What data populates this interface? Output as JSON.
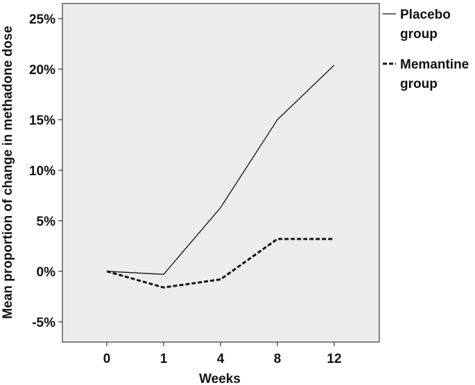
{
  "chart_data": {
    "type": "line",
    "title": "",
    "xlabel": "Weeks",
    "ylabel": "Mean proportion of change in methadone dose",
    "x": [
      "0",
      "1",
      "4",
      "8",
      "12"
    ],
    "ylim": [
      -7.0,
      26.5
    ],
    "yticks": [
      -5,
      0,
      5,
      10,
      15,
      20,
      25
    ],
    "ytick_labels": [
      "-5%",
      "0%",
      "5%",
      "10%",
      "15%",
      "20%",
      "25%"
    ],
    "grid": false,
    "legend_position": "right, outside plot area",
    "series": [
      {
        "name": "Placebo group",
        "name_lines": [
          "Placebo",
          "group"
        ],
        "style": "solid",
        "color": "#111111",
        "values": [
          0.0,
          -0.3,
          6.3,
          15.0,
          20.4
        ]
      },
      {
        "name": "Memantine group",
        "name_lines": [
          "Memantine",
          "group"
        ],
        "style": "dashed",
        "color": "#111111",
        "values": [
          0.0,
          -1.6,
          -0.8,
          3.2,
          3.2
        ]
      }
    ]
  },
  "colors": {
    "plot_background": "#ececec",
    "axis_line": "#111111",
    "series_line": "#111111"
  }
}
